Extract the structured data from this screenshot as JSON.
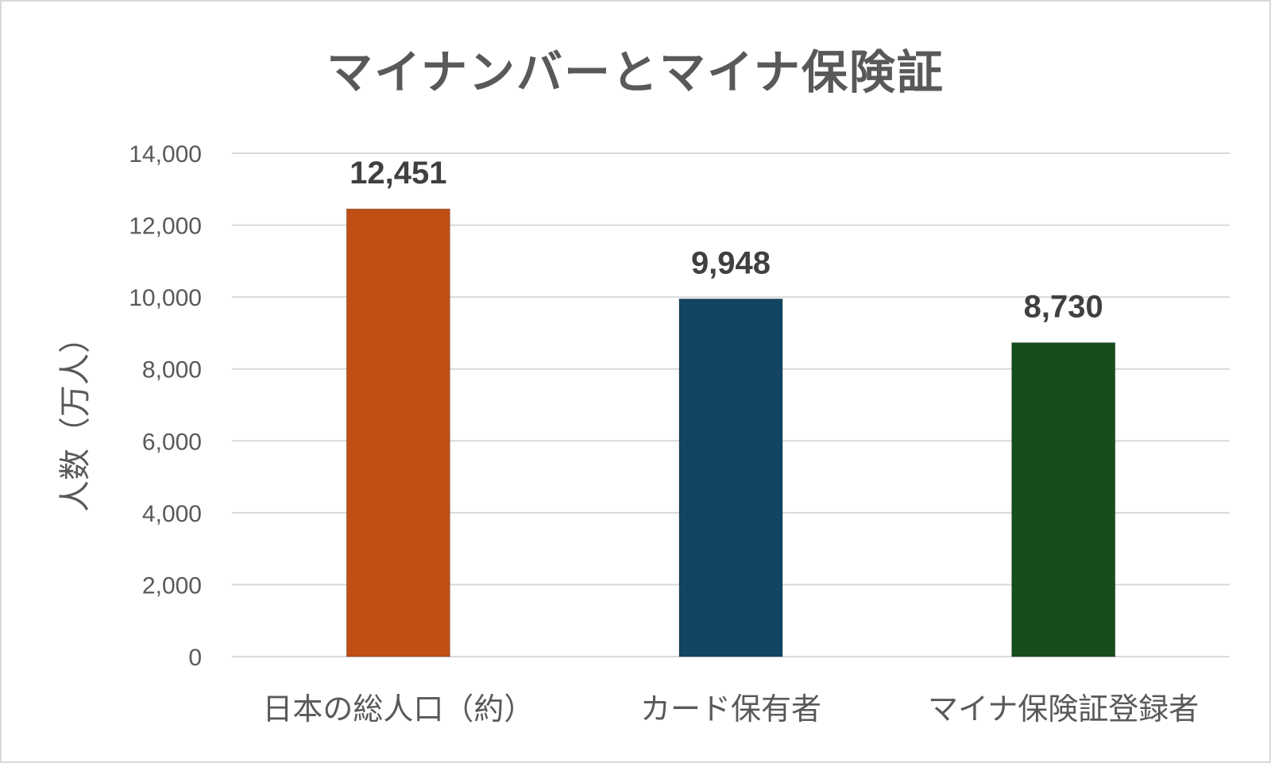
{
  "chart_data": {
    "type": "bar",
    "title": "マイナンバーとマイナ保険証",
    "ylabel": "人数（万人）",
    "xlabel": "",
    "categories": [
      "日本の総人口（約）",
      "カード保有者",
      "マイナ保険証登録者"
    ],
    "values": [
      12451,
      9948,
      8730
    ],
    "value_labels": [
      "12,451",
      "9,948",
      "8,730"
    ],
    "bar_colors": [
      "#c04f15",
      "#124561",
      "#154e1c"
    ],
    "ylim": [
      0,
      14000
    ],
    "yticks": [
      0,
      2000,
      4000,
      6000,
      8000,
      10000,
      12000,
      14000
    ],
    "ytick_labels": [
      "0",
      "2,000",
      "4,000",
      "6,000",
      "8,000",
      "10,000",
      "12,000",
      "14,000"
    ],
    "grid": true,
    "legend": "none"
  }
}
